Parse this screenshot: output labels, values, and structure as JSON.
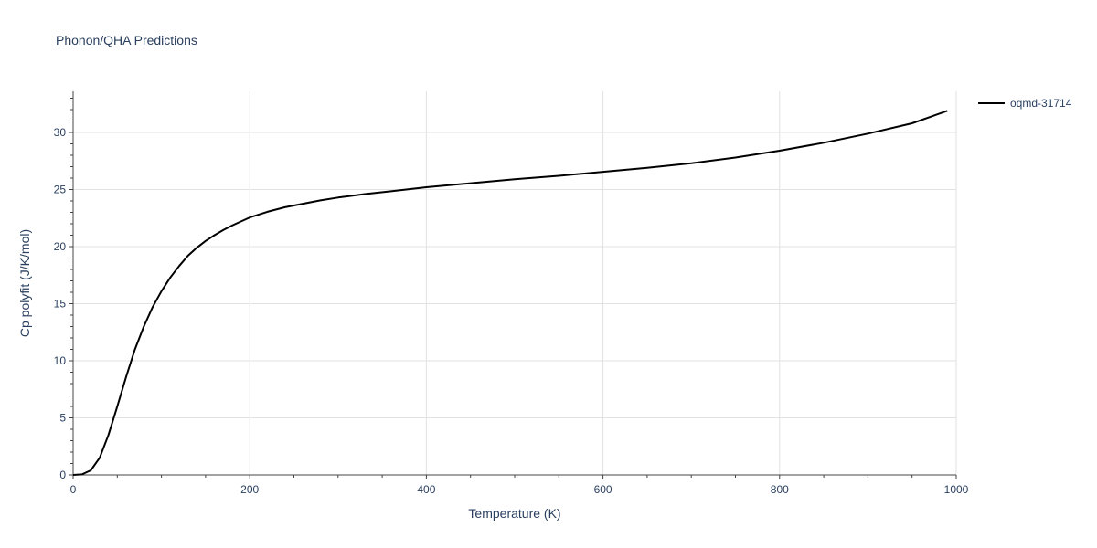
{
  "chart_data": {
    "type": "line",
    "title": "Phonon/QHA Predictions",
    "xlabel": "Temperature (K)",
    "ylabel": "Cp polyfit (J/K/mol)",
    "xlim": [
      0,
      1000
    ],
    "ylim": [
      0,
      33.6
    ],
    "xticks": [
      0,
      200,
      400,
      600,
      800,
      1000
    ],
    "yticks": [
      0,
      5,
      10,
      15,
      20,
      25,
      30
    ],
    "grid": true,
    "legend_position": "top-right",
    "series": [
      {
        "name": "oqmd-31714",
        "color": "#000000",
        "x": [
          0,
          10,
          20,
          30,
          40,
          50,
          60,
          70,
          80,
          90,
          100,
          110,
          120,
          130,
          140,
          150,
          160,
          170,
          180,
          190,
          200,
          220,
          240,
          260,
          280,
          300,
          330,
          360,
          400,
          450,
          500,
          550,
          600,
          650,
          700,
          750,
          800,
          850,
          900,
          950,
          990
        ],
        "y": [
          0,
          0.05,
          0.4,
          1.5,
          3.5,
          6.0,
          8.6,
          11.0,
          13.0,
          14.7,
          16.1,
          17.3,
          18.3,
          19.2,
          19.9,
          20.5,
          21.0,
          21.45,
          21.85,
          22.2,
          22.55,
          23.05,
          23.45,
          23.75,
          24.05,
          24.3,
          24.6,
          24.85,
          25.2,
          25.55,
          25.9,
          26.2,
          26.55,
          26.9,
          27.3,
          27.8,
          28.4,
          29.1,
          29.9,
          30.8,
          31.9
        ]
      }
    ]
  }
}
